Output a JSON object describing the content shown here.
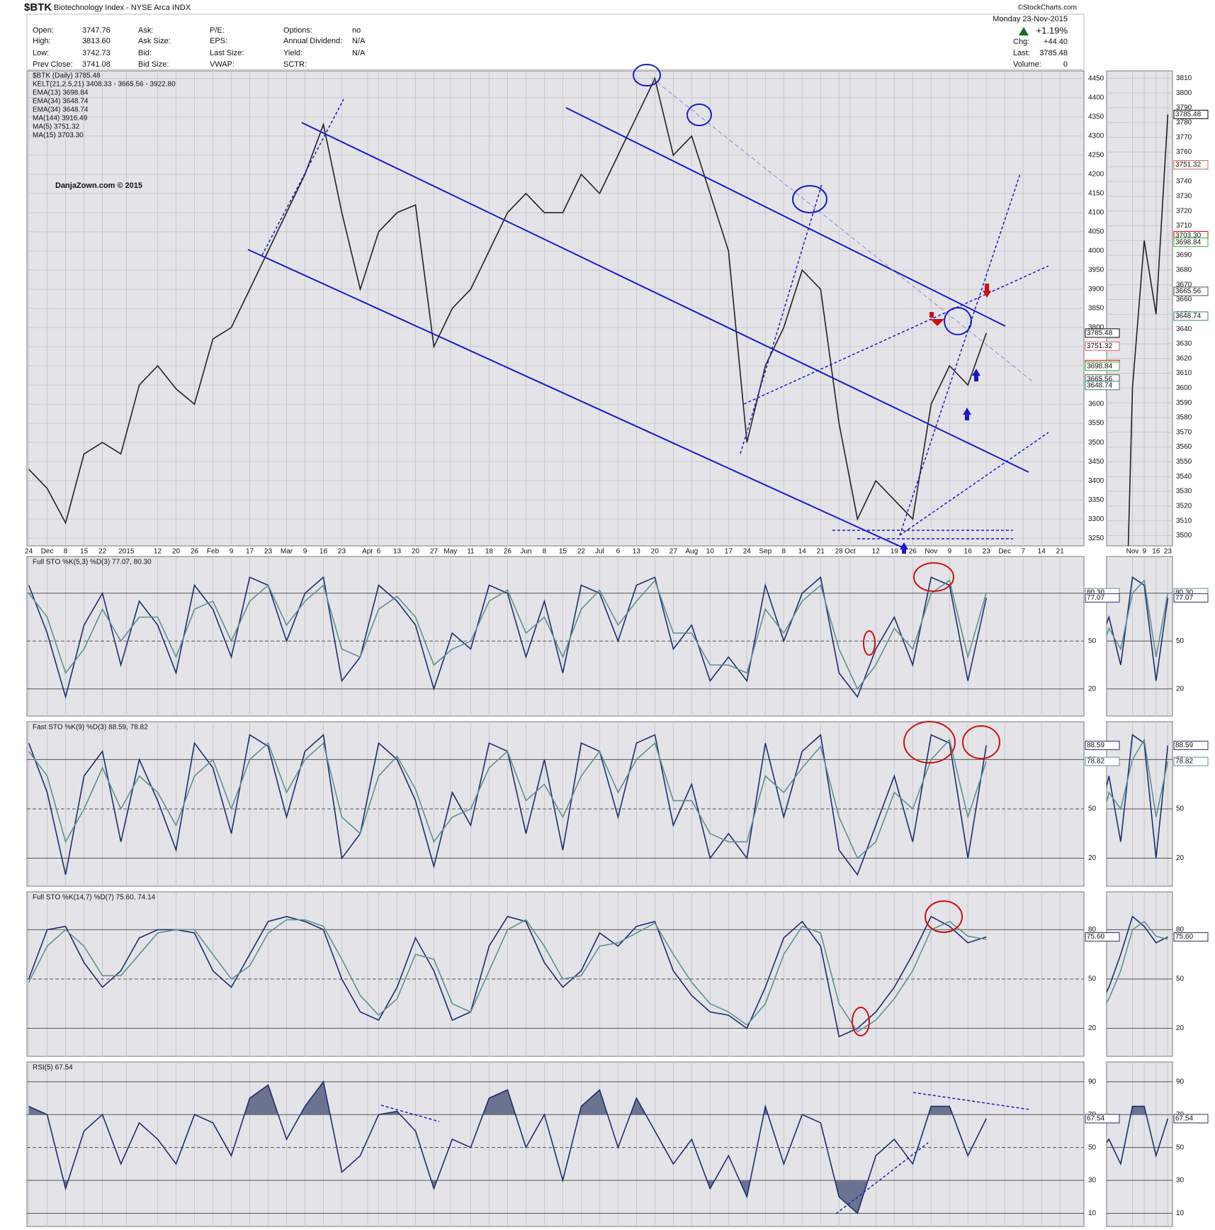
{
  "header": {
    "symbol": "$BTK",
    "name": "Biotechnology Index - NYSE Arca INDX",
    "source": "©StockCharts.com",
    "columns": [
      [
        {
          "label": "Open:",
          "value": "3747.76"
        },
        {
          "label": "High:",
          "value": "3813.60"
        },
        {
          "label": "Low:",
          "value": "3742.73"
        },
        {
          "label": "Prev Close:",
          "value": "3741.08"
        }
      ],
      [
        {
          "label": "Ask:"
        },
        {
          "label": "Ask Size:"
        },
        {
          "label": "Bid:"
        },
        {
          "label": "Bid Size:"
        }
      ],
      [
        {
          "label": "P/E:"
        },
        {
          "label": "EPS:"
        },
        {
          "label": "Last Size:"
        },
        {
          "label": "VWAP:"
        }
      ],
      [
        {
          "label": "Options:",
          "value": "no"
        },
        {
          "label": "Annual Dividend:",
          "value": "N/A"
        },
        {
          "label": "Yield:",
          "value": "N/A"
        },
        {
          "label": "SCTR:"
        }
      ]
    ],
    "date": "Monday 23-Nov-2015",
    "change_pct": "+1.19%",
    "right": [
      {
        "label": "Chg:",
        "value": "+44.40"
      },
      {
        "label": "Last:",
        "value": "3785.48"
      },
      {
        "label": "Volume:",
        "value": "0"
      }
    ]
  },
  "chart_data": [
    {
      "type": "line",
      "annotation": "DanjaZown.com © 2015",
      "legend": [
        {
          "name": "KELT(21,2.5,21) 3408.33 - 3665.56 - 3922.80",
          "color": "#000000"
        },
        {
          "name": "EMA(13) 3698.84",
          "color": "#3aa83a"
        },
        {
          "name": "EMA(34) 3648.74",
          "color": "#3a7a7a"
        },
        {
          "name": "EMA(34) 3648.74",
          "color": "#000000"
        },
        {
          "name": "MA(144) 3916.49",
          "color": "#6a5acd"
        },
        {
          "name": "MA(5) 3751.32",
          "color": "#cc6666"
        },
        {
          "name": "MA(15) 3703.30",
          "color": "#cc0000"
        }
      ],
      "x": [
        0,
        1,
        2,
        3,
        4,
        5,
        6,
        7,
        8,
        9,
        10,
        11,
        12,
        13,
        14,
        15,
        16,
        17,
        18,
        19,
        20,
        21,
        22,
        23,
        24,
        25,
        26,
        27,
        28,
        29,
        30,
        31,
        32,
        33,
        34,
        35,
        36,
        37,
        38,
        39,
        40,
        41,
        42,
        43,
        44,
        45,
        46,
        47,
        48,
        49,
        50,
        51,
        52
      ],
      "series": [
        {
          "name": "$BTK (Daily) 3785.48",
          "color": "#222222",
          "values": [
            3430,
            3380,
            3290,
            3470,
            3500,
            3470,
            3650,
            3700,
            3640,
            3600,
            3770,
            3800,
            3900,
            4000,
            4100,
            4200,
            4330,
            4100,
            3900,
            4050,
            4100,
            4120,
            3750,
            3850,
            3900,
            4000,
            4100,
            4150,
            4100,
            4100,
            4200,
            4150,
            4250,
            4350,
            4450,
            4250,
            4300,
            4150,
            4000,
            3500,
            3700,
            3800,
            3950,
            3900,
            3550,
            3300,
            3400,
            3350,
            3300,
            3600,
            3700,
            3650,
            3785.48
          ]
        }
      ],
      "markers": [
        {
          "value": 3785.48,
          "label": "3785.48",
          "color": "#000000"
        },
        {
          "value": 3751.32,
          "label": "3751.32",
          "color": "#cc6666"
        },
        {
          "value": 3703.3,
          "label": "3703.30",
          "color": "#cc0000"
        },
        {
          "value": 3698.84,
          "label": "3698.84",
          "color": "#3aa83a"
        },
        {
          "value": 3665.56,
          "label": "3665.56",
          "color": "#555555"
        },
        {
          "value": 3648.74,
          "label": "3648.74",
          "color": "#3a7a7a"
        }
      ],
      "xlim": [
        -0.1,
        57.3
      ],
      "xticks": [
        {
          "value": 0,
          "label": "24"
        },
        {
          "value": 1,
          "label": "Dec"
        },
        {
          "value": 2,
          "label": "8"
        },
        {
          "value": 3,
          "label": "15"
        },
        {
          "value": 4,
          "label": "22"
        },
        {
          "value": 5.3,
          "label": "2015"
        },
        {
          "value": 7,
          "label": "12"
        },
        {
          "value": 8,
          "label": "20"
        },
        {
          "value": 9,
          "label": "26"
        },
        {
          "value": 10,
          "label": "Feb"
        },
        {
          "value": 11,
          "label": "9"
        },
        {
          "value": 12,
          "label": "17"
        },
        {
          "value": 13,
          "label": "23"
        },
        {
          "value": 14,
          "label": "Mar"
        },
        {
          "value": 15,
          "label": "9"
        },
        {
          "value": 16,
          "label": "16"
        },
        {
          "value": 17,
          "label": "23"
        },
        {
          "value": 18.4,
          "label": "Apr"
        },
        {
          "value": 19,
          "label": "6"
        },
        {
          "value": 20,
          "label": "13"
        },
        {
          "value": 21,
          "label": "20"
        },
        {
          "value": 22,
          "label": "27"
        },
        {
          "value": 22.9,
          "label": "May"
        },
        {
          "value": 24,
          "label": "11"
        },
        {
          "value": 25,
          "label": "18"
        },
        {
          "value": 26,
          "label": "26"
        },
        {
          "value": 27,
          "label": "Jun"
        },
        {
          "value": 28,
          "label": "8"
        },
        {
          "value": 29,
          "label": "15"
        },
        {
          "value": 30,
          "label": "22"
        },
        {
          "value": 31,
          "label": "Jul"
        },
        {
          "value": 32,
          "label": "6"
        },
        {
          "value": 33,
          "label": "13"
        },
        {
          "value": 34,
          "label": "20"
        },
        {
          "value": 35,
          "label": "27"
        },
        {
          "value": 36,
          "label": "Aug"
        },
        {
          "value": 37,
          "label": "10"
        },
        {
          "value": 38,
          "label": "17"
        },
        {
          "value": 39,
          "label": "24"
        },
        {
          "value": 40,
          "label": "Sep"
        },
        {
          "value": 41,
          "label": "8"
        },
        {
          "value": 42,
          "label": "14"
        },
        {
          "value": 43,
          "label": "21"
        },
        {
          "value": 44,
          "label": "28"
        },
        {
          "value": 44.6,
          "label": "Oct"
        },
        {
          "value": 46,
          "label": "12"
        },
        {
          "value": 47,
          "label": "19"
        },
        {
          "value": 48,
          "label": "26"
        },
        {
          "value": 49,
          "label": "Nov"
        },
        {
          "value": 50,
          "label": "9"
        },
        {
          "value": 51,
          "label": "16"
        },
        {
          "value": 52,
          "label": "23"
        },
        {
          "value": 53,
          "label": "Dec"
        },
        {
          "value": 54,
          "label": "7"
        },
        {
          "value": 55,
          "label": "14"
        },
        {
          "value": 56,
          "label": "21"
        }
      ],
      "ylim": [
        3230,
        4470
      ],
      "yticks": [
        3250,
        3300,
        3350,
        3400,
        3450,
        3500,
        3550,
        3600,
        3650,
        3700,
        3750,
        3800,
        3850,
        3900,
        3950,
        4000,
        4050,
        4100,
        4150,
        4200,
        4250,
        4300,
        4350,
        4400,
        4450
      ],
      "grid": true,
      "zoom": {
        "xlim": [
          46.8,
          52.4
        ],
        "xticks": [
          {
            "value": 49,
            "label": "Nov"
          },
          {
            "value": 50,
            "label": "9"
          },
          {
            "value": 51,
            "label": "16"
          },
          {
            "value": 52,
            "label": "23"
          }
        ],
        "ylim": [
          3493,
          3815
        ],
        "yticks": [
          3500,
          3510,
          3520,
          3530,
          3540,
          3550,
          3560,
          3570,
          3580,
          3590,
          3600,
          3610,
          3620,
          3630,
          3640,
          3650,
          3660,
          3670,
          3680,
          3690,
          3700,
          3710,
          3720,
          3730,
          3740,
          3750,
          3760,
          3770,
          3780,
          3790,
          3800,
          3810
        ]
      }
    },
    {
      "type": "line",
      "title": "Full STO %K(5,3) %D(3) 77.07, 80.30",
      "series": [
        {
          "name": "%K",
          "color": "#1f2d6b",
          "values": [
            85,
            55,
            15,
            60,
            80,
            35,
            75,
            60,
            30,
            85,
            70,
            40,
            90,
            85,
            50,
            80,
            90,
            25,
            40,
            85,
            75,
            60,
            20,
            55,
            45,
            85,
            80,
            40,
            75,
            30,
            85,
            80,
            50,
            85,
            90,
            45,
            60,
            25,
            40,
            25,
            85,
            50,
            80,
            90,
            30,
            15,
            45,
            65,
            35,
            90,
            85,
            25,
            77.07
          ]
        },
        {
          "name": "%D",
          "color": "#5f9090",
          "values": [
            80,
            65,
            30,
            45,
            70,
            50,
            65,
            65,
            40,
            70,
            75,
            50,
            75,
            85,
            60,
            75,
            85,
            45,
            40,
            70,
            78,
            65,
            35,
            45,
            50,
            75,
            82,
            55,
            65,
            40,
            70,
            82,
            60,
            75,
            88,
            55,
            55,
            35,
            35,
            30,
            70,
            55,
            75,
            85,
            45,
            20,
            35,
            58,
            45,
            80,
            88,
            40,
            80.3
          ]
        }
      ],
      "markers": [
        {
          "value": 80.3,
          "label": "80.30",
          "color": "#5f9090"
        },
        {
          "value": 77.07,
          "label": "77.07",
          "color": "#1f2d6b"
        }
      ],
      "ylim": [
        3,
        103
      ],
      "yticks": [
        20,
        50,
        80
      ]
    },
    {
      "type": "line",
      "title": "Fast STO %K(9) %D(3) 88.59, 78.82",
      "series": [
        {
          "name": "%K",
          "color": "#1f2d6b",
          "values": [
            90,
            60,
            10,
            70,
            85,
            30,
            80,
            55,
            25,
            90,
            75,
            35,
            95,
            88,
            45,
            85,
            95,
            20,
            35,
            90,
            80,
            55,
            15,
            60,
            40,
            90,
            85,
            35,
            80,
            25,
            90,
            85,
            45,
            90,
            95,
            40,
            65,
            20,
            35,
            20,
            90,
            45,
            85,
            95,
            25,
            10,
            40,
            70,
            30,
            95,
            90,
            20,
            88.59
          ]
        },
        {
          "name": "%D",
          "color": "#5f9090",
          "values": [
            85,
            70,
            30,
            50,
            75,
            50,
            70,
            60,
            40,
            70,
            80,
            50,
            80,
            90,
            60,
            80,
            90,
            45,
            35,
            70,
            82,
            62,
            30,
            45,
            50,
            75,
            85,
            55,
            65,
            45,
            70,
            85,
            60,
            80,
            90,
            55,
            55,
            35,
            30,
            30,
            70,
            60,
            75,
            88,
            45,
            20,
            30,
            60,
            50,
            80,
            92,
            45,
            78.82
          ]
        }
      ],
      "markers": [
        {
          "value": 88.59,
          "label": "88.59",
          "color": "#1f2d6b"
        },
        {
          "value": 78.82,
          "label": "78.82",
          "color": "#5f9090"
        }
      ],
      "ylim": [
        3,
        103
      ],
      "yticks": [
        20,
        50,
        80
      ]
    },
    {
      "type": "line",
      "title": "Full STO %K(14,7) %D(7) 75.60, 74.14",
      "series": [
        {
          "name": "%K",
          "color": "#1f2d6b",
          "values": [
            50,
            80,
            82,
            60,
            45,
            55,
            75,
            80,
            80,
            78,
            55,
            45,
            65,
            85,
            88,
            85,
            80,
            50,
            30,
            25,
            45,
            75,
            55,
            25,
            30,
            70,
            88,
            85,
            60,
            45,
            55,
            78,
            70,
            82,
            85,
            55,
            40,
            30,
            28,
            20,
            45,
            75,
            85,
            70,
            15,
            20,
            30,
            45,
            65,
            88,
            82,
            72,
            75.6
          ]
        },
        {
          "name": "%D",
          "color": "#5f9090",
          "values": [
            48,
            70,
            80,
            70,
            52,
            52,
            65,
            78,
            80,
            80,
            65,
            50,
            58,
            78,
            86,
            86,
            82,
            62,
            40,
            28,
            38,
            65,
            62,
            35,
            30,
            55,
            80,
            86,
            70,
            50,
            52,
            70,
            72,
            78,
            84,
            65,
            48,
            35,
            30,
            22,
            35,
            65,
            82,
            78,
            35,
            18,
            25,
            38,
            55,
            80,
            85,
            76,
            74.14
          ]
        }
      ],
      "markers": [
        {
          "value": 75.6,
          "label": "75.60",
          "color": "#1f2d6b"
        }
      ],
      "ylim": [
        3,
        103
      ],
      "yticks": [
        20,
        50,
        80
      ]
    },
    {
      "type": "line",
      "title": "RSI(5) 67.54",
      "series": [
        {
          "name": "RSI",
          "color": "#1f2d6b",
          "values": [
            75,
            70,
            25,
            60,
            70,
            40,
            65,
            55,
            40,
            70,
            65,
            45,
            80,
            88,
            55,
            75,
            90,
            35,
            45,
            70,
            72,
            60,
            25,
            55,
            50,
            80,
            85,
            50,
            70,
            30,
            75,
            85,
            50,
            80,
            60,
            40,
            55,
            25,
            45,
            20,
            75,
            40,
            70,
            65,
            20,
            10,
            45,
            55,
            40,
            75,
            75,
            45,
            67.54
          ]
        }
      ],
      "markers": [
        {
          "value": 67.54,
          "label": "67.54",
          "color": "#1f2d6b"
        }
      ],
      "shade_beyond": [
        30,
        70
      ],
      "shade_color": "#6b7390",
      "ylim": [
        2,
        102
      ],
      "yticks": [
        10,
        30,
        50,
        70,
        90
      ]
    }
  ]
}
